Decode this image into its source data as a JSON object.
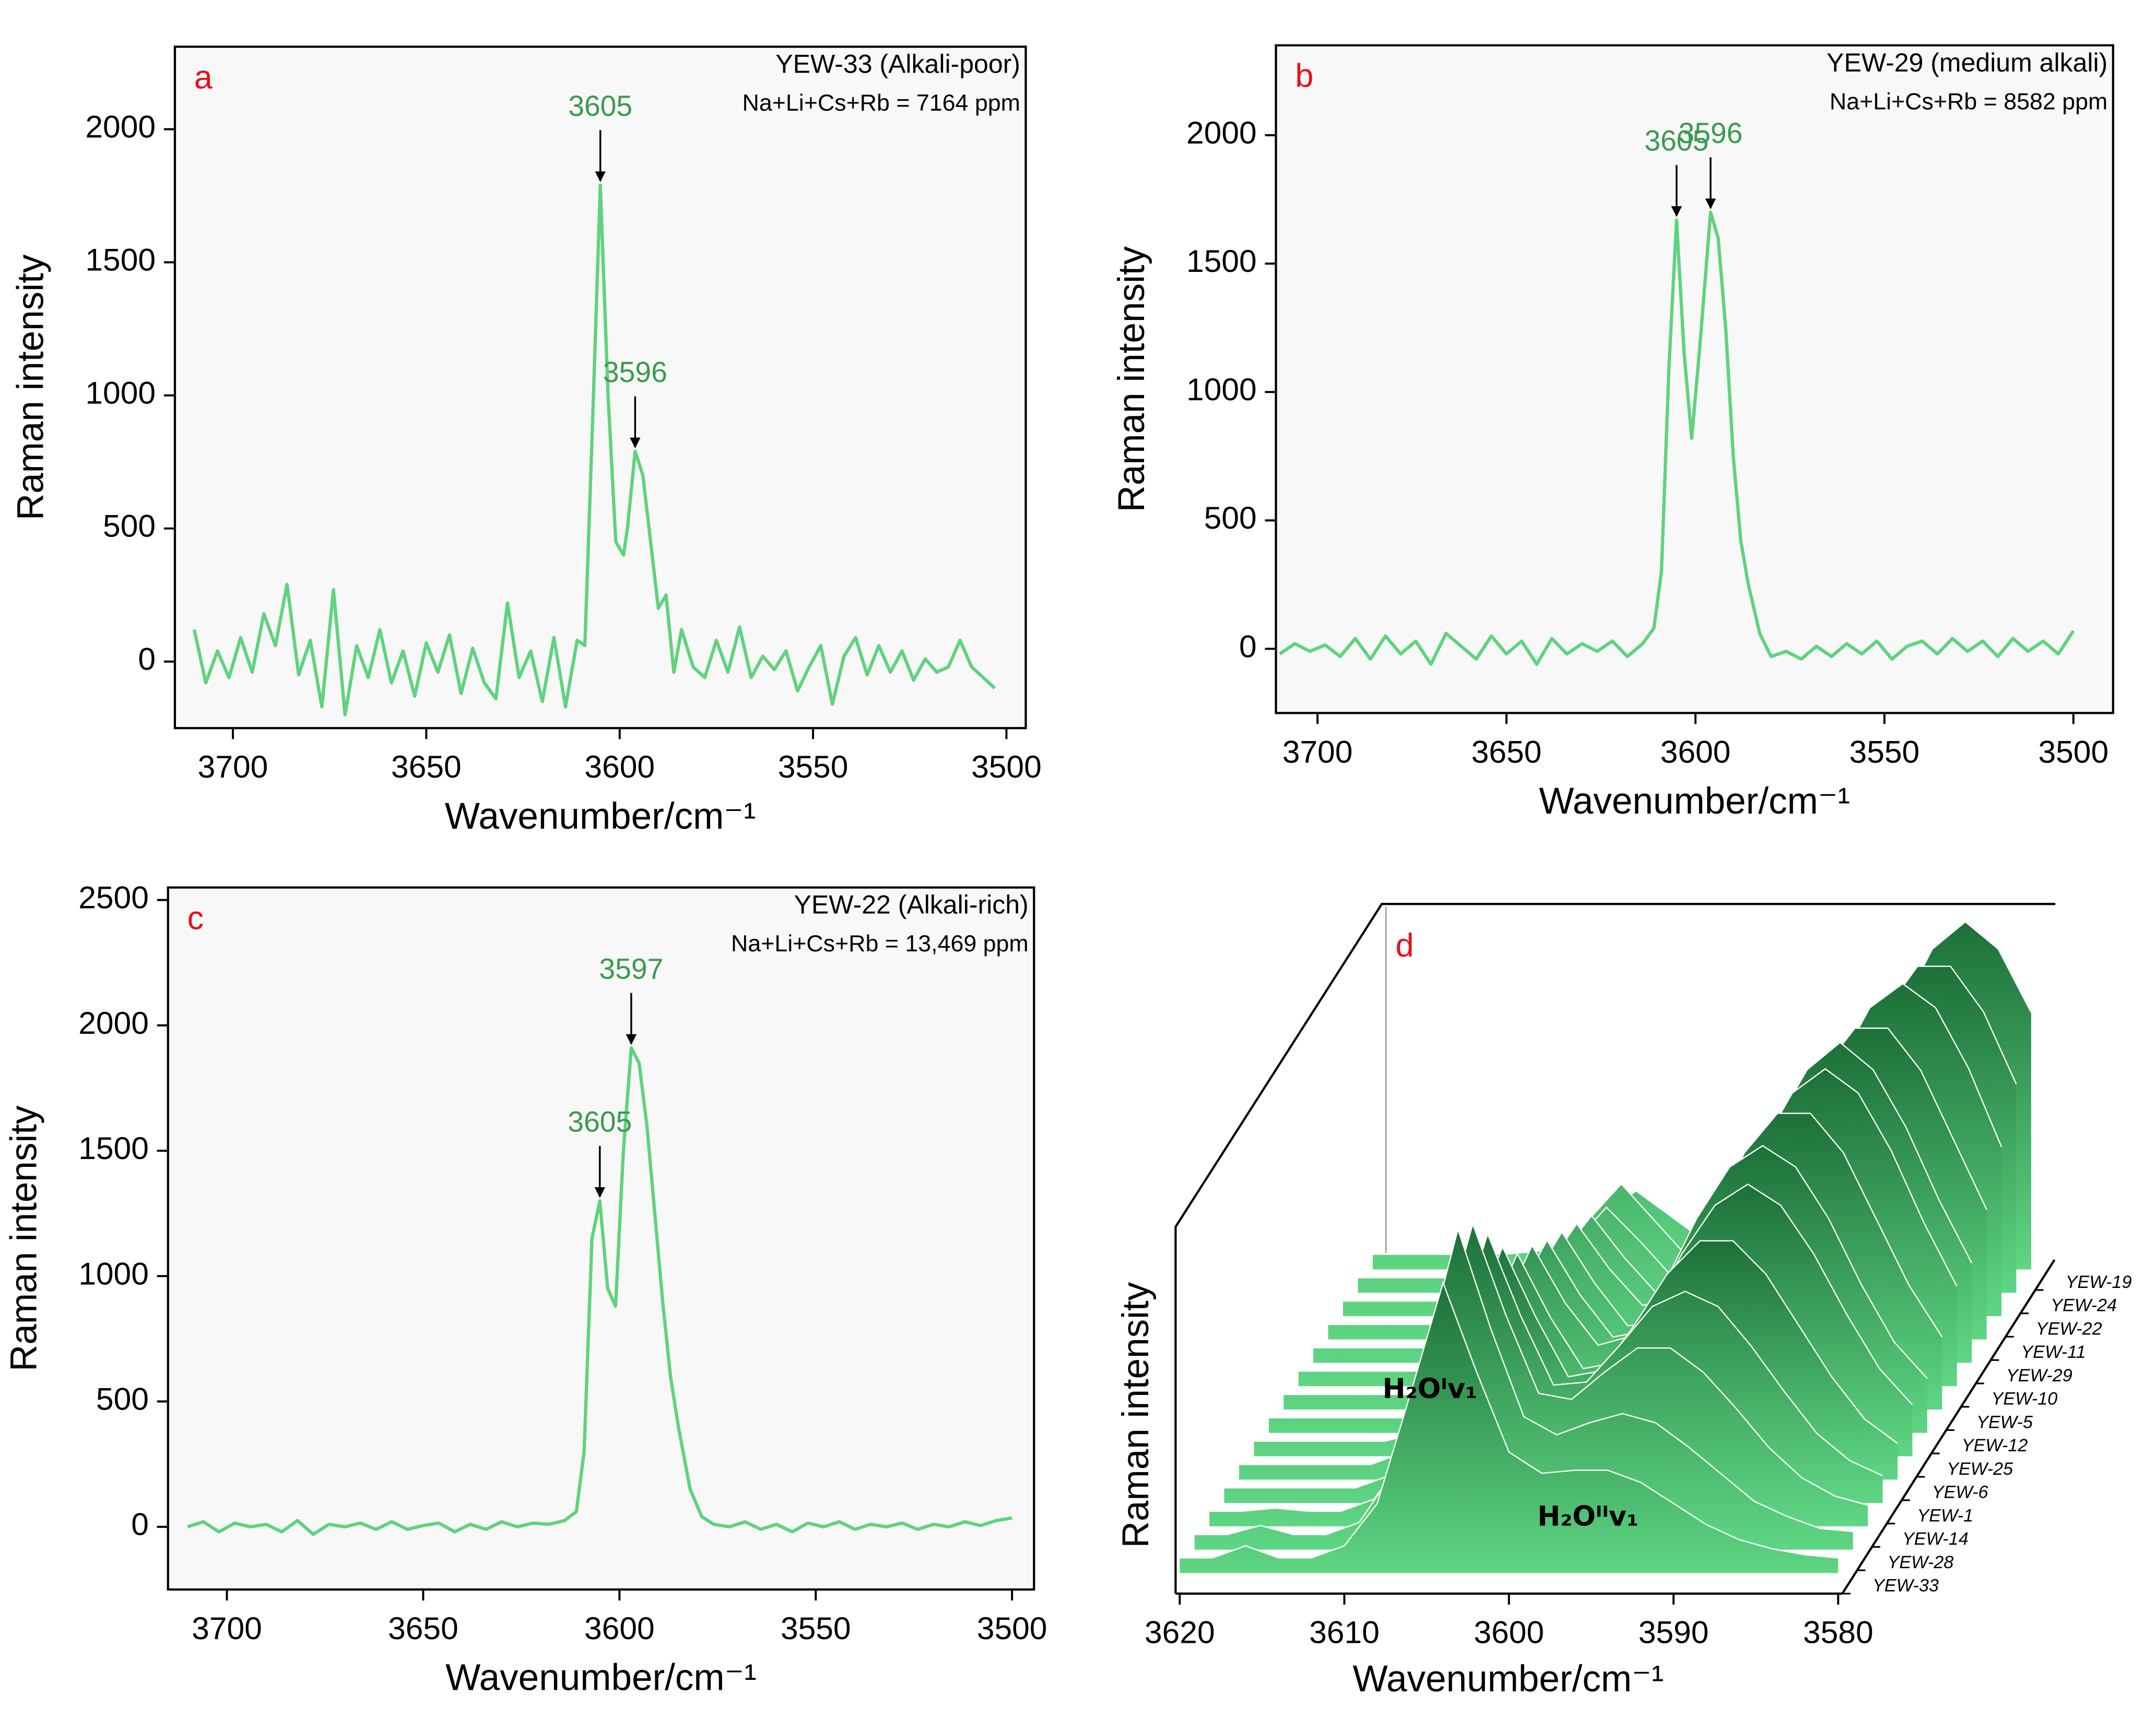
{
  "chart_data": [
    {
      "type": "line",
      "panel": "a",
      "panel_color": "#e8101a",
      "title": "YEW-33 (Alkali-poor)",
      "subtitle": "Na+Li+Cs+Rb = 7164 ppm",
      "xlabel": "Wavenumber/cm⁻¹",
      "ylabel": "Raman intensity",
      "xlim": [
        3715,
        3495
      ],
      "ylim": [
        -250,
        2310
      ],
      "xticks": [
        3700,
        3650,
        3600,
        3550,
        3500
      ],
      "yticks": [
        0,
        500,
        1000,
        1500,
        2000
      ],
      "annotations": [
        3605,
        3596
      ],
      "annotation_color": "#3a9a4e",
      "x": [
        3710,
        3707,
        3704,
        3701,
        3698,
        3695,
        3692,
        3689,
        3686,
        3683,
        3680,
        3677,
        3674,
        3671,
        3668,
        3665,
        3662,
        3659,
        3656,
        3653,
        3650,
        3647,
        3644,
        3641,
        3638,
        3635,
        3632,
        3629,
        3626,
        3623,
        3620,
        3617,
        3614,
        3611,
        3609,
        3607,
        3605,
        3603,
        3601,
        3599,
        3598,
        3596,
        3594,
        3592,
        3590,
        3588,
        3586,
        3584,
        3581,
        3578,
        3575,
        3572,
        3569,
        3566,
        3563,
        3560,
        3557,
        3554,
        3551,
        3548,
        3545,
        3542,
        3539,
        3536,
        3533,
        3530,
        3527,
        3524,
        3521,
        3518,
        3515,
        3512,
        3509,
        3506,
        3503
      ],
      "series": [
        {
          "color": "#5fd37d",
          "values": [
            120,
            -80,
            40,
            -60,
            90,
            -40,
            180,
            60,
            290,
            -50,
            80,
            -170,
            270,
            -200,
            60,
            -60,
            120,
            -80,
            40,
            -130,
            70,
            -40,
            100,
            -120,
            50,
            -80,
            -140,
            220,
            -60,
            40,
            -150,
            90,
            -170,
            80,
            60,
            900,
            1790,
            1000,
            450,
            400,
            500,
            790,
            700,
            450,
            200,
            250,
            -40,
            120,
            -20,
            -60,
            80,
            -40,
            130,
            -60,
            20,
            -30,
            40,
            -110,
            -20,
            60,
            -160,
            20,
            90,
            -50,
            60,
            -40,
            40,
            -70,
            10,
            -40,
            -20,
            80,
            -20,
            -60,
            -100
          ]
        }
      ]
    },
    {
      "type": "line",
      "panel": "b",
      "panel_color": "#e8101a",
      "title": "YEW-29 (medium alkali)",
      "subtitle": "Na+Li+Cs+Rb = 8582 ppm",
      "xlabel": "Wavenumber/cm⁻¹",
      "ylabel": "Raman intensity",
      "xlim": [
        3711,
        3489.5
      ],
      "ylim": [
        -250,
        2350
      ],
      "xticks": [
        3700,
        3650,
        3600,
        3550,
        3500
      ],
      "yticks": [
        0,
        500,
        1000,
        1500,
        2000
      ],
      "annotations": [
        3605,
        3596
      ],
      "annotation_color": "#3a9a4e",
      "x": [
        3710,
        3706,
        3702,
        3698,
        3694,
        3690,
        3686,
        3682,
        3678,
        3674,
        3670,
        3666,
        3662,
        3658,
        3654,
        3650,
        3646,
        3642,
        3638,
        3634,
        3630,
        3626,
        3622,
        3618,
        3614,
        3611,
        3609,
        3607,
        3605,
        3603,
        3601,
        3599,
        3596,
        3594,
        3592,
        3590,
        3588,
        3586,
        3583,
        3580,
        3576,
        3572,
        3568,
        3564,
        3560,
        3556,
        3552,
        3548,
        3544,
        3540,
        3536,
        3532,
        3528,
        3524,
        3520,
        3516,
        3512,
        3508,
        3504,
        3500
      ],
      "series": [
        {
          "color": "#5fd37d",
          "values": [
            -20,
            20,
            -10,
            15,
            -30,
            40,
            -40,
            50,
            -20,
            30,
            -60,
            60,
            10,
            -40,
            50,
            -20,
            30,
            -60,
            40,
            -20,
            20,
            -10,
            30,
            -30,
            20,
            80,
            300,
            1100,
            1670,
            1150,
            820,
            1150,
            1700,
            1600,
            1250,
            750,
            420,
            250,
            60,
            -30,
            -10,
            -40,
            10,
            -30,
            20,
            -20,
            30,
            -40,
            10,
            30,
            -20,
            40,
            -10,
            30,
            -30,
            40,
            -10,
            30,
            -20,
            70
          ]
        }
      ]
    },
    {
      "type": "line",
      "panel": "c",
      "panel_color": "#e8101a",
      "title": "YEW-22 (Alkali-rich)",
      "subtitle": "Na+Li+Cs+Rb = 13,469 ppm",
      "xlabel": "Wavenumber/cm⁻¹",
      "ylabel": "Raman intensity",
      "xlim": [
        3715,
        3494.4
      ],
      "ylim": [
        -250,
        2550
      ],
      "xticks": [
        3700,
        3650,
        3600,
        3550,
        3500
      ],
      "yticks": [
        0,
        500,
        1000,
        1500,
        2000,
        2500
      ],
      "annotations": [
        3605,
        3597
      ],
      "annotation_color": "#3a9a4e",
      "x": [
        3710,
        3706,
        3702,
        3698,
        3694,
        3690,
        3686,
        3682,
        3678,
        3674,
        3670,
        3666,
        3662,
        3658,
        3654,
        3650,
        3646,
        3642,
        3638,
        3634,
        3630,
        3626,
        3622,
        3618,
        3614,
        3611,
        3609,
        3607,
        3605,
        3603,
        3601,
        3599,
        3597,
        3595,
        3593,
        3591,
        3589,
        3587,
        3585,
        3582,
        3579,
        3576,
        3572,
        3568,
        3564,
        3560,
        3556,
        3552,
        3548,
        3544,
        3540,
        3536,
        3532,
        3528,
        3524,
        3520,
        3516,
        3512,
        3508,
        3504,
        3500
      ],
      "series": [
        {
          "color": "#5fd37d",
          "values": [
            0,
            20,
            -20,
            15,
            0,
            10,
            -20,
            25,
            -30,
            10,
            0,
            15,
            -10,
            20,
            -10,
            5,
            15,
            -20,
            10,
            -10,
            20,
            0,
            15,
            10,
            25,
            60,
            300,
            1150,
            1300,
            950,
            880,
            1500,
            1910,
            1850,
            1600,
            1250,
            900,
            600,
            400,
            150,
            40,
            10,
            0,
            20,
            -10,
            10,
            -20,
            15,
            0,
            20,
            -10,
            10,
            0,
            15,
            -10,
            10,
            0,
            20,
            5,
            25,
            35
          ]
        }
      ]
    },
    {
      "type": "waterfall",
      "panel": "d",
      "panel_color": "#e8101a",
      "xlabel": "Wavenumber/cm⁻¹",
      "ylabel": "Raman intensity",
      "xlim": [
        3620,
        3580
      ],
      "xticks": [
        3620,
        3610,
        3600,
        3590,
        3580
      ],
      "gradient": [
        "#1d7038",
        "#5fd683"
      ],
      "line_color": "#ffffff",
      "labels": [
        "H₂Oᴵv₁",
        "H₂Oᴵᴵv₁"
      ],
      "x": [
        3620,
        3618,
        3616,
        3614,
        3612,
        3610,
        3608,
        3606,
        3604,
        3602,
        3600,
        3598,
        3596,
        3594,
        3592,
        3590,
        3588,
        3586,
        3584,
        3582,
        3580
      ],
      "series": [
        {
          "name": "YEW-33",
          "values": [
            5,
            5,
            9,
            5,
            5,
            9,
            23,
            59,
            96,
            67,
            40,
            33,
            34,
            34,
            30,
            23,
            16,
            11,
            8,
            6,
            5
          ]
        },
        {
          "name": "YEW-28",
          "values": [
            5,
            5,
            8,
            5,
            5,
            9,
            25,
            64,
            106,
            73,
            44,
            38,
            42,
            45,
            42,
            34,
            25,
            16,
            11,
            7,
            6
          ]
        },
        {
          "name": "YEW-14",
          "values": [
            5,
            5,
            6,
            5,
            5,
            9,
            24,
            61,
            100,
            70,
            44,
            42,
            51,
            59,
            59,
            51,
            39,
            26,
            16,
            10,
            7
          ]
        },
        {
          "name": "YEW-1",
          "values": [
            5,
            5,
            5,
            5,
            5,
            9,
            22,
            54,
            89,
            62,
            39,
            40,
            52,
            65,
            70,
            65,
            52,
            37,
            23,
            14,
            9
          ]
        },
        {
          "name": "YEW-6",
          "values": [
            5,
            5,
            5,
            5,
            5,
            9,
            20,
            48,
            77,
            54,
            34,
            36,
            51,
            68,
            79,
            79,
            68,
            51,
            34,
            20,
            12
          ]
        },
        {
          "name": "YEW-25",
          "values": [
            5,
            5,
            5,
            5,
            5,
            8,
            18,
            42,
            67,
            46,
            29,
            31,
            47,
            67,
            83,
            90,
            83,
            67,
            47,
            29,
            17
          ]
        },
        {
          "name": "YEW-12",
          "values": [
            5,
            5,
            5,
            5,
            5,
            8,
            17,
            39,
            62,
            43,
            29,
            32,
            49,
            71,
            88,
            95,
            88,
            71,
            49,
            30,
            18
          ]
        },
        {
          "name": "YEW-5",
          "values": [
            5,
            5,
            5,
            5,
            5,
            8,
            16,
            36,
            56,
            38,
            24,
            26,
            41,
            63,
            85,
            98,
            98,
            85,
            63,
            41,
            24
          ]
        },
        {
          "name": "YEW-10",
          "values": [
            5,
            5,
            5,
            5,
            5,
            8,
            15,
            33,
            51,
            34,
            20,
            21,
            33,
            54,
            78,
            97,
            105,
            97,
            78,
            54,
            33
          ]
        },
        {
          "name": "YEW-29",
          "values": [
            5,
            5,
            5,
            5,
            5,
            8,
            14,
            30,
            46,
            31,
            19,
            21,
            33,
            54,
            78,
            97,
            106,
            97,
            78,
            54,
            33
          ]
        },
        {
          "name": "YEW-11",
          "values": [
            5,
            5,
            5,
            5,
            5,
            7,
            13,
            27,
            41,
            27,
            15,
            15,
            25,
            43,
            66,
            89,
            103,
            103,
            89,
            66,
            43
          ]
        },
        {
          "name": "YEW-22",
          "values": [
            5,
            5,
            5,
            5,
            5,
            7,
            12,
            24,
            36,
            25,
            13,
            12,
            20,
            34,
            56,
            82,
            102,
            110,
            102,
            82,
            56
          ]
        },
        {
          "name": "YEW-24",
          "values": [
            5,
            5,
            5,
            5,
            5,
            7,
            12,
            24,
            36,
            24,
            12,
            9,
            15,
            26,
            45,
            69,
            93,
            108,
            108,
            93,
            69
          ]
        },
        {
          "name": "YEW-19",
          "values": [
            5,
            5,
            5,
            5,
            5,
            6,
            10,
            18,
            26,
            18,
            10,
            8,
            12,
            20,
            36,
            59,
            85,
            106,
            115,
            106,
            85
          ]
        }
      ]
    }
  ]
}
